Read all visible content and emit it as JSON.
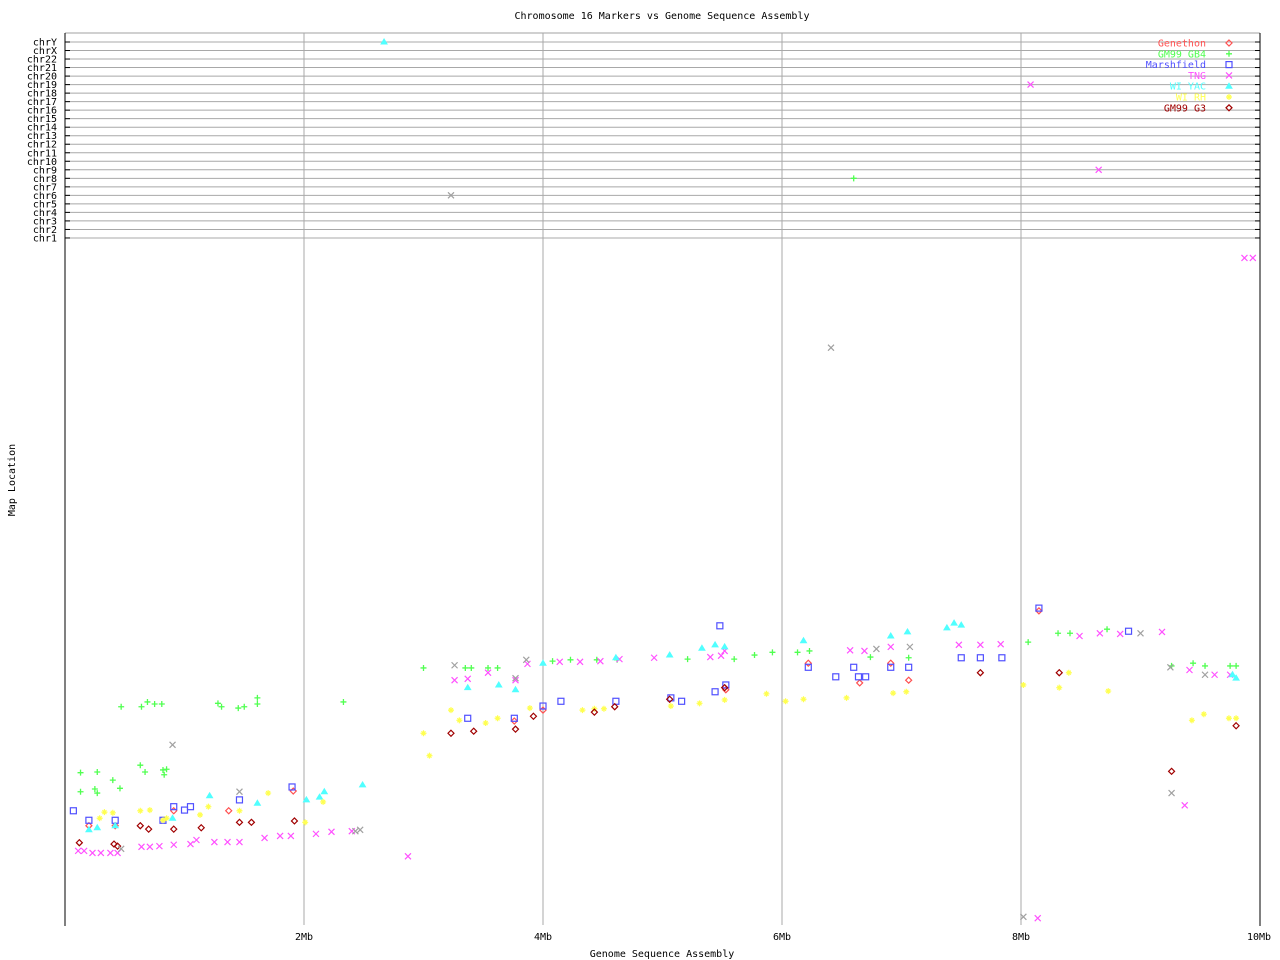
{
  "chart_data": {
    "type": "scatter",
    "title": "Chromosome 16 Markers vs Genome Sequence Assembly",
    "xlabel": "Genome Sequence Assembly",
    "ylabel": "Map Location",
    "xlim": [
      0,
      10
    ],
    "x_unit": "Mb",
    "x_ticks": [
      "2Mb",
      "4Mb",
      "6Mb",
      "8Mb",
      "10Mb"
    ],
    "y_chromosome_ticks": [
      "chrY",
      "chrX",
      "chr22",
      "chr21",
      "chr20",
      "chr19",
      "chr18",
      "chr17",
      "chr16",
      "chr15",
      "chr14",
      "chr13",
      "chr12",
      "chr11",
      "chr10",
      "chr9",
      "chr8",
      "chr7",
      "chr6",
      "chr5",
      "chr4",
      "chr3",
      "chr2",
      "chr1"
    ],
    "grid": true,
    "legend_position": "top-right",
    "series": [
      {
        "name": "Genethon",
        "color": "#ff5050",
        "marker": "diamond",
        "points": [
          [
            0.2,
            14.6
          ],
          [
            0.42,
            14.6
          ],
          [
            0.91,
            16.8
          ],
          [
            1.37,
            16.8
          ],
          [
            1.91,
            19.7
          ],
          [
            3.76,
            30
          ],
          [
            4.0,
            31.6
          ],
          [
            5.53,
            34.6
          ],
          [
            6.22,
            38.5
          ],
          [
            6.91,
            38.5
          ],
          [
            8.15,
            46.2
          ],
          [
            7.06,
            36
          ],
          [
            6.65,
            35.6
          ]
        ]
      },
      {
        "name": "GM99 GB4",
        "color": "#50ff50",
        "marker": "plus",
        "points": [
          [
            0.47,
            32.1
          ],
          [
            0.64,
            32.1
          ],
          [
            0.69,
            32.8
          ],
          [
            0.75,
            32.5
          ],
          [
            0.81,
            32.5
          ],
          [
            1.28,
            32.6
          ],
          [
            1.31,
            32.1
          ],
          [
            1.45,
            31.9
          ],
          [
            1.5,
            32.1
          ],
          [
            1.61,
            33.4
          ],
          [
            1.61,
            32.5
          ],
          [
            2.33,
            32.8
          ],
          [
            0.13,
            22.4
          ],
          [
            0.27,
            22.5
          ],
          [
            0.13,
            19.6
          ],
          [
            0.25,
            20
          ],
          [
            0.27,
            19.4
          ],
          [
            0.4,
            21.3
          ],
          [
            0.46,
            20.1
          ],
          [
            0.63,
            23.5
          ],
          [
            0.67,
            22.5
          ],
          [
            0.82,
            22.8
          ],
          [
            0.85,
            22.9
          ],
          [
            0.83,
            22.1
          ],
          [
            3.0,
            37.8
          ],
          [
            3.35,
            37.8
          ],
          [
            3.4,
            37.8
          ],
          [
            3.54,
            37.8
          ],
          [
            3.62,
            37.8
          ],
          [
            4.08,
            38.8
          ],
          [
            4.23,
            39
          ],
          [
            4.45,
            39
          ],
          [
            4.62,
            39
          ],
          [
            5.21,
            39.1
          ],
          [
            5.6,
            39.1
          ],
          [
            5.77,
            39.7
          ],
          [
            5.92,
            40.1
          ],
          [
            6.13,
            40.1
          ],
          [
            6.23,
            40.3
          ],
          [
            8.06,
            41.6
          ],
          [
            8.31,
            42.9
          ],
          [
            8.41,
            42.9
          ],
          [
            8.72,
            43.5
          ],
          [
            9.26,
            38.1
          ],
          [
            9.44,
            38.5
          ],
          [
            9.54,
            38.1
          ],
          [
            9.75,
            38.1
          ],
          [
            9.8,
            38.1
          ],
          [
            6.74,
            39.4
          ],
          [
            7.06,
            39.3
          ]
        ],
        "off_chromosome": [
          {
            "x": 6.6,
            "chr": "chr8"
          }
        ]
      },
      {
        "name": "Marshfield",
        "color": "#5050ff",
        "marker": "square",
        "points": [
          [
            0.07,
            16.8
          ],
          [
            0.2,
            15.4
          ],
          [
            0.42,
            15.4
          ],
          [
            0.82,
            15.4
          ],
          [
            0.91,
            17.4
          ],
          [
            1.0,
            16.9
          ],
          [
            1.05,
            17.4
          ],
          [
            1.46,
            18.4
          ],
          [
            1.9,
            20.3
          ],
          [
            3.37,
            30.4
          ],
          [
            3.76,
            30.4
          ],
          [
            4.0,
            32.2
          ],
          [
            4.15,
            32.9
          ],
          [
            4.61,
            32.9
          ],
          [
            5.07,
            33.4
          ],
          [
            5.16,
            32.9
          ],
          [
            5.44,
            34.3
          ],
          [
            5.53,
            35.3
          ],
          [
            5.48,
            44
          ],
          [
            6.22,
            37.9
          ],
          [
            6.45,
            36.5
          ],
          [
            6.6,
            37.9
          ],
          [
            6.64,
            36.5
          ],
          [
            6.7,
            36.5
          ],
          [
            6.91,
            37.9
          ],
          [
            7.06,
            37.9
          ],
          [
            7.5,
            39.3
          ],
          [
            7.66,
            39.3
          ],
          [
            7.84,
            39.3
          ],
          [
            8.15,
            46.6
          ],
          [
            8.9,
            43.2
          ]
        ]
      },
      {
        "name": "TNG",
        "color": "#ff50ff",
        "marker": "x",
        "points": [
          [
            0.11,
            10.9
          ],
          [
            0.16,
            10.9
          ],
          [
            0.23,
            10.6
          ],
          [
            0.3,
            10.6
          ],
          [
            0.38,
            10.6
          ],
          [
            0.44,
            10.6
          ],
          [
            0.64,
            11.5
          ],
          [
            0.71,
            11.5
          ],
          [
            0.79,
            11.6
          ],
          [
            0.91,
            11.8
          ],
          [
            1.05,
            11.9
          ],
          [
            1.1,
            12.5
          ],
          [
            1.25,
            12.2
          ],
          [
            1.36,
            12.2
          ],
          [
            1.46,
            12.2
          ],
          [
            1.67,
            12.8
          ],
          [
            1.8,
            13.1
          ],
          [
            1.89,
            13.1
          ],
          [
            2.1,
            13.4
          ],
          [
            2.23,
            13.7
          ],
          [
            2.4,
            13.8
          ],
          [
            2.87,
            10.1
          ],
          [
            3.26,
            36
          ],
          [
            3.37,
            36.2
          ],
          [
            3.54,
            37.1
          ],
          [
            3.77,
            36
          ],
          [
            3.87,
            38.4
          ],
          [
            4.14,
            38.7
          ],
          [
            4.31,
            38.7
          ],
          [
            4.48,
            38.8
          ],
          [
            4.64,
            39.1
          ],
          [
            4.93,
            39.3
          ],
          [
            5.4,
            39.4
          ],
          [
            5.49,
            39.6
          ],
          [
            5.52,
            40.3
          ],
          [
            6.57,
            40.4
          ],
          [
            6.69,
            40.3
          ],
          [
            6.91,
            40.9
          ],
          [
            7.48,
            41.2
          ],
          [
            7.66,
            41.2
          ],
          [
            7.83,
            41.3
          ],
          [
            8.49,
            42.5
          ],
          [
            8.66,
            42.9
          ],
          [
            8.83,
            42.8
          ],
          [
            9.18,
            43.1
          ],
          [
            9.41,
            37.5
          ],
          [
            9.62,
            36.8
          ],
          [
            9.75,
            36.8
          ],
          [
            9.37,
            17.6
          ],
          [
            8.14,
            1
          ],
          [
            9.87,
            98.1
          ],
          [
            9.94,
            98.1
          ]
        ],
        "off_chromosome": [
          {
            "x": 8.08,
            "chr": "chr19"
          },
          {
            "x": 8.65,
            "chr": "chr9"
          }
        ]
      },
      {
        "name": "WI YAC",
        "color": "#50ffff",
        "marker": "triangle",
        "points": [
          [
            0.2,
            14
          ],
          [
            0.27,
            14.3
          ],
          [
            0.42,
            14.6
          ],
          [
            0.9,
            15.7
          ],
          [
            1.21,
            19
          ],
          [
            1.61,
            17.9
          ],
          [
            2.02,
            18.4
          ],
          [
            2.13,
            18.8
          ],
          [
            2.17,
            19.6
          ],
          [
            2.49,
            20.6
          ],
          [
            3.37,
            34.9
          ],
          [
            3.63,
            35.3
          ],
          [
            3.77,
            34.6
          ],
          [
            4.0,
            38.5
          ],
          [
            4.61,
            39.3
          ],
          [
            5.06,
            39.7
          ],
          [
            5.33,
            40.7
          ],
          [
            5.44,
            41.2
          ],
          [
            5.52,
            40.9
          ],
          [
            6.18,
            41.8
          ],
          [
            6.91,
            42.5
          ],
          [
            7.05,
            43.1
          ],
          [
            7.38,
            43.7
          ],
          [
            7.44,
            44.4
          ],
          [
            7.5,
            44.1
          ],
          [
            9.77,
            36.8
          ],
          [
            9.8,
            36.3
          ]
        ],
        "off_chromosome": [
          {
            "x": 2.67,
            "chr": "chrY"
          }
        ]
      },
      {
        "name": "WI RH",
        "color": "#ffff50",
        "marker": "star",
        "points": [
          [
            0.29,
            15.7
          ],
          [
            0.33,
            16.6
          ],
          [
            0.4,
            16.5
          ],
          [
            0.63,
            16.8
          ],
          [
            0.71,
            16.9
          ],
          [
            0.82,
            15.4
          ],
          [
            0.85,
            15.7
          ],
          [
            1.13,
            16.2
          ],
          [
            1.2,
            17.4
          ],
          [
            1.46,
            16.8
          ],
          [
            1.7,
            19.4
          ],
          [
            2.01,
            15.1
          ],
          [
            2.16,
            18.1
          ],
          [
            3.0,
            28.2
          ],
          [
            3.05,
            24.9
          ],
          [
            3.23,
            31.6
          ],
          [
            3.3,
            30.1
          ],
          [
            3.52,
            29.7
          ],
          [
            3.62,
            30.4
          ],
          [
            3.89,
            31.9
          ],
          [
            4.33,
            31.6
          ],
          [
            4.43,
            31.8
          ],
          [
            4.51,
            31.8
          ],
          [
            5.07,
            32.2
          ],
          [
            5.31,
            32.6
          ],
          [
            5.52,
            33.1
          ],
          [
            5.87,
            34
          ],
          [
            6.03,
            32.9
          ],
          [
            6.18,
            33.2
          ],
          [
            6.54,
            33.4
          ],
          [
            6.93,
            34.1
          ],
          [
            7.04,
            34.3
          ],
          [
            8.02,
            35.3
          ],
          [
            8.32,
            34.9
          ],
          [
            8.4,
            37.1
          ],
          [
            8.73,
            34.4
          ],
          [
            9.43,
            30.1
          ],
          [
            9.53,
            31
          ],
          [
            9.74,
            30.4
          ],
          [
            9.8,
            30.4
          ]
        ]
      },
      {
        "name": "GM99 G3",
        "color": "#a00000",
        "marker": "diamond",
        "points": [
          [
            0.12,
            12.1
          ],
          [
            0.41,
            11.9
          ],
          [
            0.44,
            11.6
          ],
          [
            0.63,
            14.6
          ],
          [
            0.7,
            14.1
          ],
          [
            0.91,
            14.1
          ],
          [
            1.14,
            14.3
          ],
          [
            1.46,
            15.1
          ],
          [
            1.56,
            15.1
          ],
          [
            1.92,
            15.3
          ],
          [
            3.23,
            28.2
          ],
          [
            3.42,
            28.5
          ],
          [
            3.77,
            28.8
          ],
          [
            3.92,
            30.7
          ],
          [
            4.43,
            31.3
          ],
          [
            4.6,
            32.1
          ],
          [
            5.06,
            33.2
          ],
          [
            5.52,
            34.9
          ],
          [
            8.32,
            37.1
          ],
          [
            9.26,
            22.6
          ],
          [
            9.8,
            29.3
          ],
          [
            7.66,
            37.1
          ]
        ]
      },
      {
        "color": "#a0a0a0",
        "marker": "x",
        "points": [
          [
            8.02,
            1.2
          ],
          [
            6.41,
            84.9
          ],
          [
            0.9,
            26.5
          ],
          [
            9.26,
            19.4
          ],
          [
            2.43,
            13.8
          ],
          [
            2.47,
            14
          ],
          [
            3.26,
            38.2
          ],
          [
            3.86,
            39
          ],
          [
            3.77,
            36.3
          ],
          [
            6.79,
            40.6
          ],
          [
            7.07,
            40.9
          ],
          [
            9.0,
            42.9
          ],
          [
            9.25,
            37.9
          ],
          [
            9.54,
            36.8
          ],
          [
            1.46,
            19.6
          ],
          [
            0.47,
            11.2
          ]
        ],
        "off_chromosome": [
          {
            "x": 3.23,
            "chr": "chr6"
          }
        ]
      }
    ]
  }
}
